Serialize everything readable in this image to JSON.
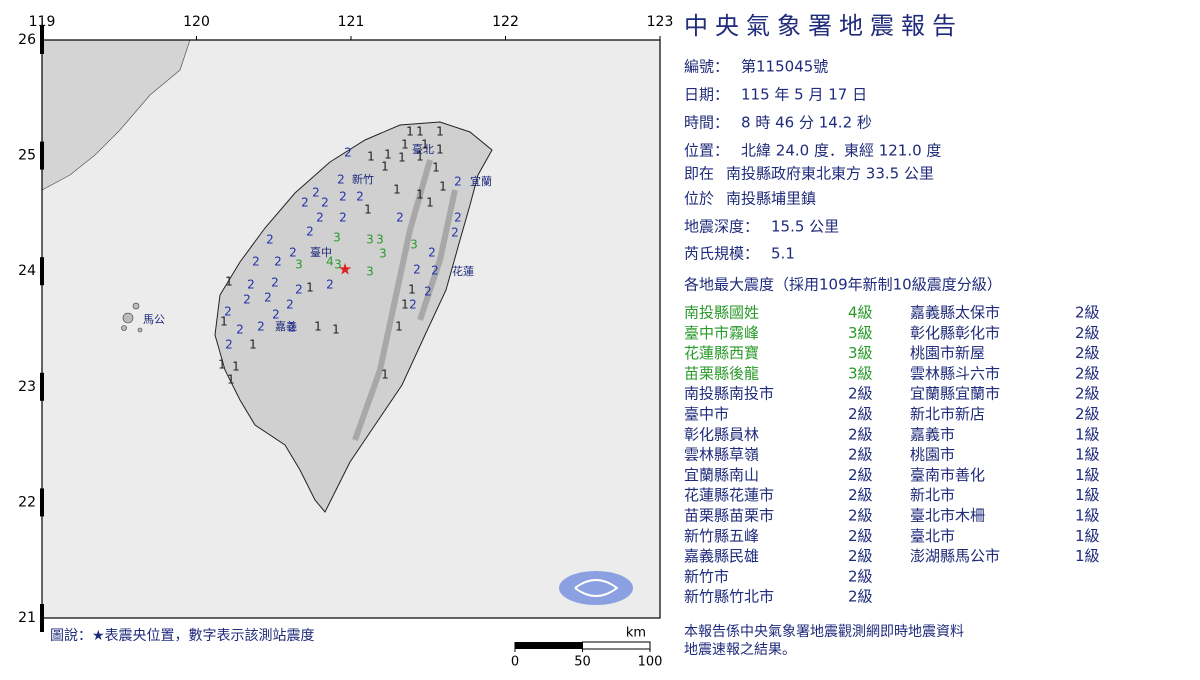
{
  "map": {
    "lon_ticks": [
      119,
      120,
      121,
      122,
      123
    ],
    "lat_ticks": [
      26,
      25,
      24,
      23,
      22,
      21
    ],
    "places": [
      "臺北",
      "新竹",
      "宜蘭",
      "臺中",
      "花蓮",
      "嘉義",
      "馬公"
    ],
    "stations": [
      1,
      1,
      1,
      1,
      1,
      2,
      1,
      1,
      1,
      1,
      1,
      1,
      1,
      2,
      1,
      1,
      1,
      2,
      2,
      2,
      2,
      2,
      2,
      2,
      2,
      1,
      2,
      1,
      2,
      2,
      2,
      2,
      3,
      3,
      3,
      3,
      2,
      3,
      2,
      4,
      3,
      3,
      2,
      2,
      3,
      2,
      2,
      1,
      2,
      2,
      2,
      2,
      1,
      1,
      2,
      2,
      2,
      2,
      1,
      2,
      2,
      2,
      1,
      2,
      2,
      2,
      1,
      1,
      2,
      1,
      1,
      1,
      1,
      1,
      1
    ],
    "legend": "圖說：★表震央位置，數字表示該測站震度",
    "scale": {
      "unit": "km",
      "ticks": [
        0,
        50,
        100
      ]
    }
  },
  "report": {
    "title": "中央氣象署地震報告",
    "fields": [
      {
        "label": "編號：",
        "value": "第115045號"
      },
      {
        "label": "日期：",
        "value": "115 年 5 月 17 日"
      },
      {
        "label": "時間：",
        "value": "8 時 46 分 14.2 秒"
      },
      {
        "label": "位置：",
        "value": "北緯 24.0 度．東經 121.0 度"
      },
      {
        "label": "即在",
        "value": "南投縣政府東北東方 33.5 公里"
      },
      {
        "label": "位於",
        "value": "南投縣埔里鎮"
      },
      {
        "label": "地震深度：",
        "value": "15.5 公里"
      },
      {
        "label": "芮氏規模：",
        "value": "5.1"
      }
    ],
    "intensity_heading": "各地最大震度（採用109年新制10級震度分級）",
    "intensity": [
      {
        "station": "南投縣國姓",
        "level": "4級"
      },
      {
        "station": "臺中市霧峰",
        "level": "3級"
      },
      {
        "station": "花蓮縣西寶",
        "level": "3級"
      },
      {
        "station": "苗栗縣後龍",
        "level": "3級"
      },
      {
        "station": "南投縣南投市",
        "level": "2級"
      },
      {
        "station": "臺中市",
        "level": "2級"
      },
      {
        "station": "彰化縣員林",
        "level": "2級"
      },
      {
        "station": "雲林縣草嶺",
        "level": "2級"
      },
      {
        "station": "宜蘭縣南山",
        "level": "2級"
      },
      {
        "station": "花蓮縣花蓮市",
        "level": "2級"
      },
      {
        "station": "苗栗縣苗栗市",
        "level": "2級"
      },
      {
        "station": "新竹縣五峰",
        "level": "2級"
      },
      {
        "station": "嘉義縣民雄",
        "level": "2級"
      },
      {
        "station": "新竹市",
        "level": "2級"
      },
      {
        "station": "新竹縣竹北市",
        "level": "2級"
      },
      {
        "station": "嘉義縣太保市",
        "level": "2級"
      },
      {
        "station": "彰化縣彰化市",
        "level": "2級"
      },
      {
        "station": "桃園市新屋",
        "level": "2級"
      },
      {
        "station": "雲林縣斗六市",
        "level": "2級"
      },
      {
        "station": "宜蘭縣宜蘭市",
        "level": "2級"
      },
      {
        "station": "新北市新店",
        "level": "2級"
      },
      {
        "station": "嘉義市",
        "level": "1級"
      },
      {
        "station": "桃園市",
        "level": "1級"
      },
      {
        "station": "臺南市善化",
        "level": "1級"
      },
      {
        "station": "新北市",
        "level": "1級"
      },
      {
        "station": "臺北市木柵",
        "level": "1級"
      },
      {
        "station": "臺北市",
        "level": "1級"
      },
      {
        "station": "澎湖縣馬公市",
        "level": "1級"
      }
    ],
    "note": [
      "本報告係中央氣象署地震觀測網即時地震資料",
      "地震速報之結果。"
    ]
  }
}
